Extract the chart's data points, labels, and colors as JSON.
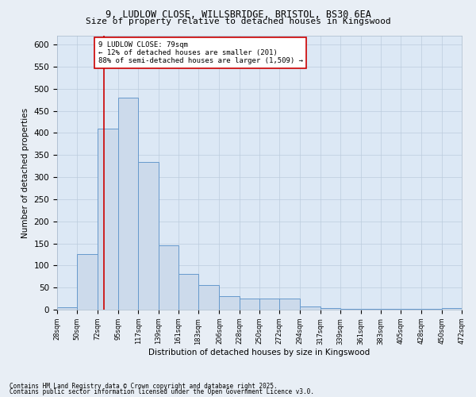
{
  "title_line1": "9, LUDLOW CLOSE, WILLSBRIDGE, BRISTOL, BS30 6EA",
  "title_line2": "Size of property relative to detached houses in Kingswood",
  "xlabel": "Distribution of detached houses by size in Kingswood",
  "ylabel": "Number of detached properties",
  "footnote1": "Contains HM Land Registry data © Crown copyright and database right 2025.",
  "footnote2": "Contains public sector information licensed under the Open Government Licence v3.0.",
  "bar_edges": [
    28,
    50,
    72,
    95,
    117,
    139,
    161,
    183,
    206,
    228,
    250,
    272,
    294,
    317,
    339,
    361,
    383,
    405,
    428,
    450,
    472
  ],
  "bar_heights": [
    5,
    125,
    410,
    480,
    335,
    145,
    80,
    55,
    30,
    25,
    25,
    25,
    8,
    4,
    2,
    1,
    1,
    1,
    1,
    4
  ],
  "bar_color": "#ccdaeb",
  "bar_edge_color": "#6699cc",
  "bar_linewidth": 0.7,
  "grid_color": "#bbccdd",
  "bg_color": "#dce8f5",
  "fig_bg_color": "#e8eef5",
  "property_size": 79,
  "red_line_color": "#cc0000",
  "annotation_text": "9 LUDLOW CLOSE: 79sqm\n← 12% of detached houses are smaller (201)\n88% of semi-detached houses are larger (1,509) →",
  "annotation_box_color": "#cc0000",
  "ylim": [
    0,
    620
  ],
  "yticks": [
    0,
    50,
    100,
    150,
    200,
    250,
    300,
    350,
    400,
    450,
    500,
    550,
    600
  ],
  "tick_labels": [
    "28sqm",
    "50sqm",
    "72sqm",
    "95sqm",
    "117sqm",
    "139sqm",
    "161sqm",
    "183sqm",
    "206sqm",
    "228sqm",
    "250sqm",
    "272sqm",
    "294sqm",
    "317sqm",
    "339sqm",
    "361sqm",
    "383sqm",
    "405sqm",
    "428sqm",
    "450sqm",
    "472sqm"
  ]
}
